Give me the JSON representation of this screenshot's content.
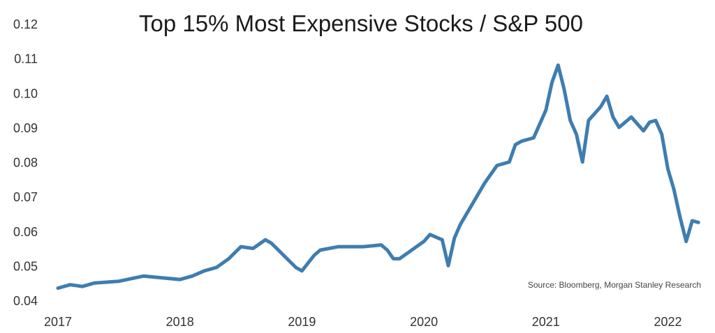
{
  "chart_data": {
    "type": "line",
    "title": "Top 15% Most Expensive Stocks / S&P 500",
    "xlabel": "",
    "ylabel": "",
    "source": "Source: Bloomberg, Morgan Stanley Research",
    "xlim": [
      2017.0,
      2022.25
    ],
    "ylim": [
      0.04,
      0.12
    ],
    "x_ticks": [
      "2017",
      "2018",
      "2019",
      "2020",
      "2021",
      "2022"
    ],
    "y_ticks": [
      "0.04",
      "0.05",
      "0.06",
      "0.07",
      "0.08",
      "0.09",
      "0.10",
      "0.11",
      "0.12"
    ],
    "grid": false,
    "line_color": "#3e7db0",
    "series": [
      {
        "x": [
          2017.0,
          2017.1,
          2017.2,
          2017.3,
          2017.5,
          2017.7,
          2017.85,
          2018.0,
          2018.1,
          2018.2,
          2018.3,
          2018.4,
          2018.5,
          2018.6,
          2018.7,
          2018.75,
          2018.85,
          2018.95,
          2019.0,
          2019.1,
          2019.15,
          2019.3,
          2019.5,
          2019.65,
          2019.7,
          2019.75,
          2019.8,
          2019.9,
          2020.0,
          2020.05,
          2020.15,
          2020.2,
          2020.25,
          2020.3,
          2020.4,
          2020.5,
          2020.6,
          2020.7,
          2020.75,
          2020.8,
          2020.9,
          2021.0,
          2021.05,
          2021.1,
          2021.15,
          2021.2,
          2021.25,
          2021.3,
          2021.35,
          2021.45,
          2021.5,
          2021.55,
          2021.6,
          2021.7,
          2021.8,
          2021.85,
          2021.9,
          2021.95,
          2022.0,
          2022.05,
          2022.1,
          2022.15,
          2022.2,
          2022.25
        ],
        "y": [
          0.0435,
          0.0445,
          0.044,
          0.045,
          0.0455,
          0.047,
          0.0465,
          0.046,
          0.047,
          0.0485,
          0.0495,
          0.052,
          0.0555,
          0.055,
          0.0575,
          0.0565,
          0.053,
          0.0495,
          0.0485,
          0.053,
          0.0545,
          0.0555,
          0.0555,
          0.056,
          0.0545,
          0.052,
          0.052,
          0.0545,
          0.057,
          0.059,
          0.0575,
          0.05,
          0.058,
          0.062,
          0.068,
          0.074,
          0.079,
          0.08,
          0.085,
          0.086,
          0.087,
          0.095,
          0.103,
          0.108,
          0.101,
          0.092,
          0.088,
          0.08,
          0.092,
          0.096,
          0.099,
          0.093,
          0.09,
          0.093,
          0.089,
          0.0915,
          0.092,
          0.088,
          0.078,
          0.072,
          0.064,
          0.057,
          0.063,
          0.0625
        ]
      }
    ]
  }
}
